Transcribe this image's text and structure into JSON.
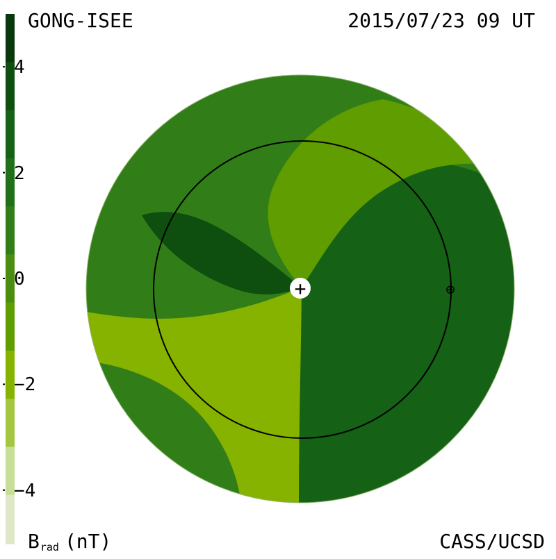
{
  "labels": {
    "top_left": "GONG-ISEE",
    "top_right": "2015/07/23 09 UT",
    "bottom_right": "CASS/UCSD",
    "colorbar_title_main": "B",
    "colorbar_title_sub": "rad",
    "colorbar_title_unit": "(nT)"
  },
  "colors": {
    "background": "#ffffff",
    "ring": "#000000",
    "colorbar_levels": [
      {
        "value": -5,
        "color": "#dfe8c6"
      },
      {
        "value": -4,
        "color": "#c7de96"
      },
      {
        "value": -3,
        "color": "#a4c640"
      },
      {
        "value": -2,
        "color": "#86b200"
      },
      {
        "value": -1,
        "color": "#5f9d00"
      },
      {
        "value": 0,
        "color": "#4a8d0f"
      },
      {
        "value": 1,
        "color": "#317e18"
      },
      {
        "value": 2,
        "color": "#1f7018"
      },
      {
        "value": 3,
        "color": "#156116"
      },
      {
        "value": 4,
        "color": "#0e4e0f"
      },
      {
        "value": 5,
        "color": "#08380b"
      }
    ]
  },
  "chart_data": {
    "type": "heatmap",
    "colorbar": {
      "ticks": [
        4,
        2,
        0,
        -2,
        -4
      ],
      "tick_labels": [
        "4",
        "2",
        "0",
        "−2",
        "−4"
      ],
      "range": [
        -5,
        5
      ]
    },
    "panel": {
      "center_marker": "+",
      "earth_marker": "⊕"
    }
  }
}
